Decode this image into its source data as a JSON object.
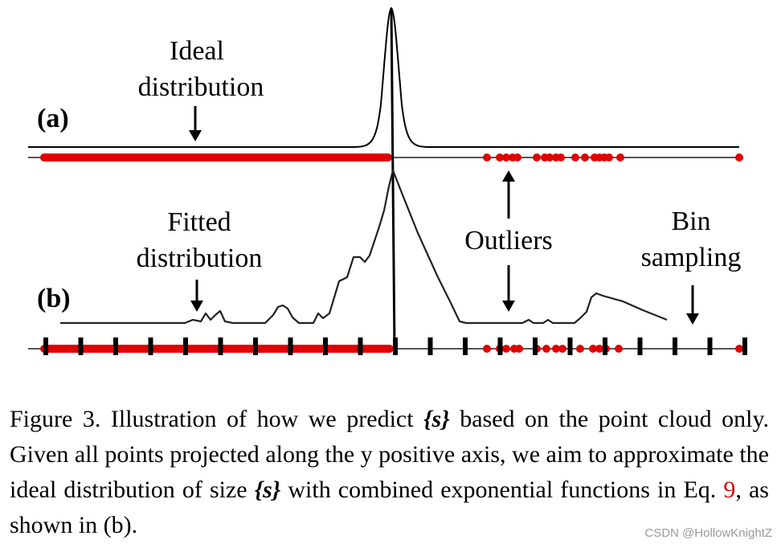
{
  "figure": {
    "panel_a_label": "(a)",
    "panel_b_label": "(b)",
    "ideal_label_line1": "Ideal",
    "ideal_label_line2": "distribution",
    "fitted_label_line1": "Fitted",
    "fitted_label_line2": "distribution",
    "outliers_label": "Outliers",
    "bin_label_line1": "Bin",
    "bin_label_line2": "sampling",
    "point_color": "#e00000",
    "line_color": "#000000"
  },
  "caption": {
    "prefix": "Figure 3.",
    "part1": " Illustration of how we predict ",
    "set_symbol": "{s}",
    "part2": " based on the point cloud only. Given all points projected along the y positive axis, we aim to approximate the ideal distribution of size ",
    "set_symbol2": "{s}",
    "part3": " with combined exponential functions in Eq. ",
    "eq_ref": "9",
    "part4": ", as shown in (b)."
  },
  "watermark": "CSDN @HollowKnightZ"
}
